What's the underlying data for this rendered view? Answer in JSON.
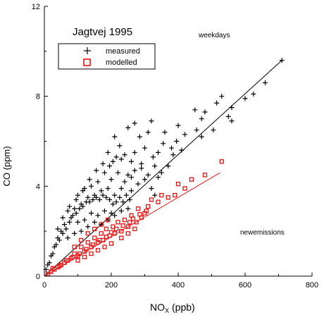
{
  "chart_data": {
    "type": "scatter",
    "title": "Jagtvej 1995",
    "annotations": [
      "weekdays",
      "newemissions"
    ],
    "xlabel": "NO",
    "xlabel_sub": "X",
    "xlabel_unit": "(ppb)",
    "ylabel": "CO (ppm)",
    "xlim": [
      0,
      800
    ],
    "ylim": [
      0,
      12
    ],
    "x_ticks": [
      0,
      200,
      400,
      600,
      800
    ],
    "y_ticks": [
      0,
      4,
      8,
      12
    ],
    "grid": false,
    "legend_position": "top-left",
    "series": [
      {
        "name": "measured",
        "marker": "plus",
        "color": "#000000",
        "fit_line": {
          "x": [
            0,
            710
          ],
          "y": [
            0,
            9.6
          ]
        },
        "points": [
          [
            710,
            9.6
          ],
          [
            660,
            8.6
          ],
          [
            625,
            8.1
          ],
          [
            600,
            7.9
          ],
          [
            560,
            7.5
          ],
          [
            550,
            7.1
          ],
          [
            530,
            8.0
          ],
          [
            515,
            7.7
          ],
          [
            505,
            6.5
          ],
          [
            560,
            6.9
          ],
          [
            480,
            7.3
          ],
          [
            470,
            7.0
          ],
          [
            450,
            7.4
          ],
          [
            455,
            6.5
          ],
          [
            470,
            6.2
          ],
          [
            420,
            6.3
          ],
          [
            400,
            6.7
          ],
          [
            395,
            6.0
          ],
          [
            380,
            5.7
          ],
          [
            360,
            6.4
          ],
          [
            355,
            5.9
          ],
          [
            340,
            5.5
          ],
          [
            325,
            5.3
          ],
          [
            310,
            6.4
          ],
          [
            300,
            5.7
          ],
          [
            285,
            6.2
          ],
          [
            270,
            5.5
          ],
          [
            260,
            5.1
          ],
          [
            250,
            6.6
          ],
          [
            240,
            5.4
          ],
          [
            230,
            5.2
          ],
          [
            225,
            5.8
          ],
          [
            210,
            6.2
          ],
          [
            205,
            5.1
          ],
          [
            190,
            5.5
          ],
          [
            250,
            4.5
          ],
          [
            290,
            4.8
          ],
          [
            330,
            4.9
          ],
          [
            350,
            4.6
          ],
          [
            300,
            4.3
          ],
          [
            320,
            3.9
          ],
          [
            270,
            4.7
          ],
          [
            280,
            4.1
          ],
          [
            260,
            3.8
          ],
          [
            240,
            4.2
          ],
          [
            230,
            3.9
          ],
          [
            220,
            4.6
          ],
          [
            210,
            3.6
          ],
          [
            200,
            4.3
          ],
          [
            190,
            3.9
          ],
          [
            180,
            4.6
          ],
          [
            170,
            3.8
          ],
          [
            160,
            4.2
          ],
          [
            150,
            3.6
          ],
          [
            140,
            4.0
          ],
          [
            130,
            3.5
          ],
          [
            120,
            3.9
          ],
          [
            110,
            3.2
          ],
          [
            100,
            3.6
          ],
          [
            90,
            3.0
          ],
          [
            80,
            2.6
          ],
          [
            70,
            2.9
          ],
          [
            60,
            2.3
          ],
          [
            50,
            2.0
          ],
          [
            40,
            1.7
          ],
          [
            30,
            1.3
          ],
          [
            20,
            0.9
          ],
          [
            10,
            0.5
          ],
          [
            5,
            0.3
          ],
          [
            15,
            0.6
          ],
          [
            25,
            1.0
          ],
          [
            35,
            1.4
          ],
          [
            45,
            1.6
          ],
          [
            55,
            1.9
          ],
          [
            65,
            2.1
          ],
          [
            75,
            2.4
          ],
          [
            85,
            2.7
          ],
          [
            95,
            2.8
          ],
          [
            105,
            3.0
          ],
          [
            115,
            3.1
          ],
          [
            125,
            3.3
          ],
          [
            135,
            3.3
          ],
          [
            145,
            3.4
          ],
          [
            155,
            3.5
          ],
          [
            165,
            3.4
          ],
          [
            175,
            3.6
          ],
          [
            185,
            3.5
          ],
          [
            195,
            3.4
          ],
          [
            205,
            3.2
          ],
          [
            215,
            3.3
          ],
          [
            225,
            3.5
          ],
          [
            235,
            3.3
          ],
          [
            245,
            3.6
          ],
          [
            255,
            3.4
          ],
          [
            200,
            2.8
          ],
          [
            180,
            2.9
          ],
          [
            160,
            2.7
          ],
          [
            140,
            2.8
          ],
          [
            120,
            2.5
          ],
          [
            100,
            2.4
          ],
          [
            150,
            2.4
          ],
          [
            170,
            2.3
          ],
          [
            130,
            2.2
          ],
          [
            110,
            2.0
          ],
          [
            90,
            1.9
          ],
          [
            70,
            1.7
          ],
          [
            190,
            2.5
          ],
          [
            210,
            2.7
          ],
          [
            230,
            2.9
          ],
          [
            250,
            3.0
          ],
          [
            40,
            2.1
          ],
          [
            55,
            2.6
          ],
          [
            75,
            3.1
          ],
          [
            95,
            3.4
          ],
          [
            115,
            3.8
          ],
          [
            135,
            4.3
          ],
          [
            155,
            4.7
          ],
          [
            175,
            5.0
          ],
          [
            195,
            4.9
          ],
          [
            215,
            5.3
          ],
          [
            320,
            6.9
          ],
          [
            270,
            6.8
          ],
          [
            290,
            5.0
          ],
          [
            310,
            4.5
          ],
          [
            340,
            4.4
          ],
          [
            370,
            4.9
          ],
          [
            385,
            5.4
          ],
          [
            410,
            5.6
          ],
          [
            330,
            3.6
          ],
          [
            260,
            4.4
          ]
        ]
      },
      {
        "name": "modelled",
        "marker": "square",
        "color": "#ee1111",
        "fit_line": {
          "x": [
            0,
            525
          ],
          "y": [
            0,
            4.6
          ]
        },
        "points": [
          [
            530,
            5.1
          ],
          [
            480,
            4.5
          ],
          [
            440,
            4.3
          ],
          [
            420,
            3.9
          ],
          [
            400,
            4.1
          ],
          [
            390,
            3.6
          ],
          [
            370,
            3.5
          ],
          [
            350,
            3.6
          ],
          [
            340,
            3.3
          ],
          [
            320,
            3.4
          ],
          [
            300,
            2.8
          ],
          [
            310,
            3.1
          ],
          [
            290,
            2.6
          ],
          [
            280,
            3.0
          ],
          [
            275,
            2.4
          ],
          [
            260,
            2.7
          ],
          [
            250,
            2.2
          ],
          [
            240,
            2.5
          ],
          [
            230,
            2.0
          ],
          [
            220,
            2.4
          ],
          [
            210,
            1.9
          ],
          [
            205,
            2.2
          ],
          [
            195,
            1.8
          ],
          [
            185,
            2.1
          ],
          [
            175,
            1.6
          ],
          [
            170,
            1.9
          ],
          [
            160,
            1.5
          ],
          [
            150,
            1.7
          ],
          [
            140,
            1.3
          ],
          [
            130,
            1.5
          ],
          [
            120,
            1.1
          ],
          [
            110,
            1.3
          ],
          [
            100,
            0.9
          ],
          [
            90,
            1.0
          ],
          [
            80,
            0.8
          ],
          [
            70,
            0.7
          ],
          [
            60,
            0.6
          ],
          [
            50,
            0.5
          ],
          [
            40,
            0.4
          ],
          [
            30,
            0.3
          ],
          [
            20,
            0.2
          ],
          [
            10,
            0.1
          ],
          [
            25,
            0.35
          ],
          [
            45,
            0.45
          ],
          [
            65,
            0.7
          ],
          [
            85,
            0.85
          ],
          [
            105,
            1.0
          ],
          [
            125,
            1.2
          ],
          [
            145,
            1.4
          ],
          [
            165,
            1.6
          ],
          [
            185,
            1.75
          ],
          [
            200,
            1.95
          ],
          [
            215,
            2.1
          ],
          [
            235,
            2.25
          ],
          [
            255,
            2.4
          ],
          [
            265,
            2.55
          ],
          [
            285,
            2.75
          ],
          [
            305,
            2.9
          ],
          [
            200,
            1.45
          ],
          [
            180,
            1.3
          ],
          [
            160,
            1.15
          ],
          [
            140,
            1.0
          ],
          [
            120,
            0.85
          ],
          [
            100,
            0.7
          ],
          [
            90,
            1.3
          ],
          [
            110,
            1.6
          ],
          [
            130,
            1.9
          ],
          [
            150,
            2.1
          ],
          [
            170,
            2.3
          ],
          [
            190,
            2.5
          ],
          [
            230,
            1.7
          ],
          [
            250,
            1.9
          ],
          [
            270,
            2.1
          ]
        ]
      }
    ]
  }
}
